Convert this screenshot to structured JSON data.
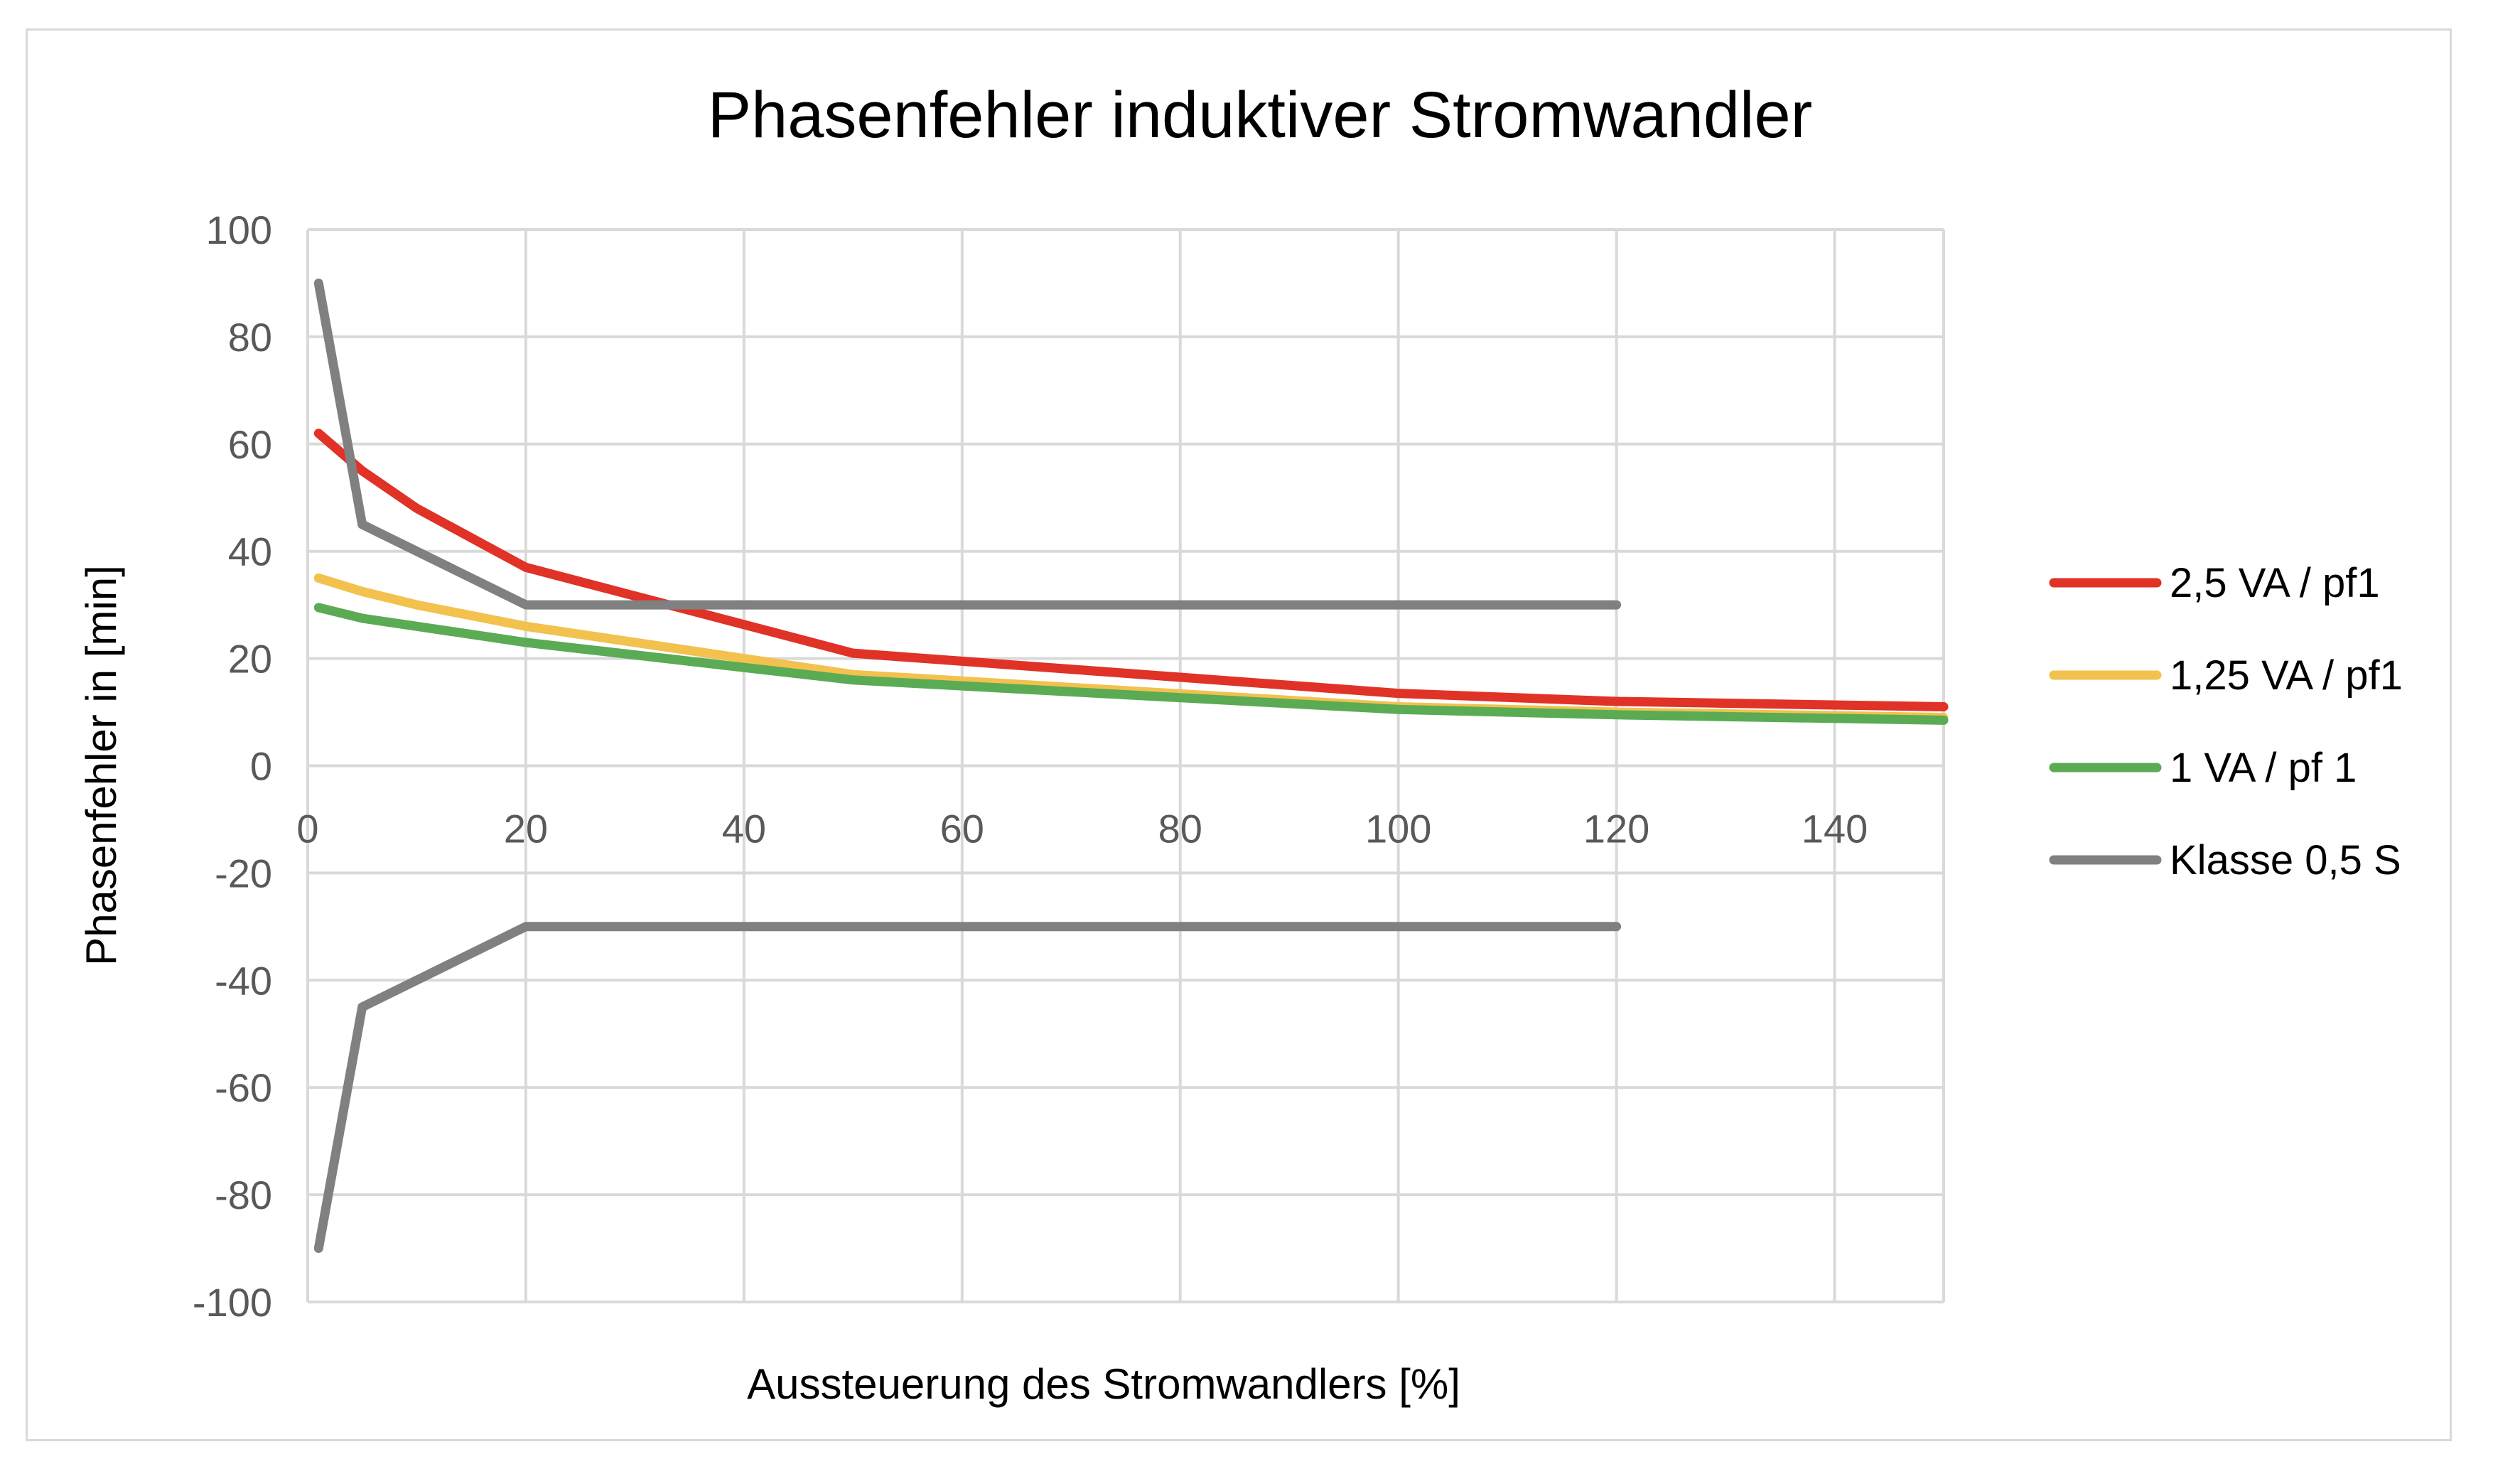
{
  "chart_data": {
    "type": "line",
    "title": "Phasenfehler induktiver Stromwandler",
    "xlabel": "Aussteuerung des Stromwandlers [%]",
    "ylabel": "Phasenfehler in [min]",
    "xlim": [
      0,
      150
    ],
    "ylim": [
      -100,
      100
    ],
    "x_ticks": [
      0,
      20,
      40,
      60,
      80,
      100,
      120,
      140
    ],
    "y_ticks": [
      100,
      80,
      60,
      40,
      20,
      0,
      -20,
      -40,
      -60,
      -80,
      -100
    ],
    "grid": true,
    "legend_position": "right",
    "series": [
      {
        "name": "2,5 VA / pf1",
        "color": "#e03226",
        "points": [
          [
            1,
            62
          ],
          [
            5,
            55
          ],
          [
            10,
            48
          ],
          [
            20,
            37
          ],
          [
            50,
            21
          ],
          [
            100,
            13.5
          ],
          [
            120,
            12
          ],
          [
            150,
            11
          ]
        ]
      },
      {
        "name": "1,25 VA / pf1",
        "color": "#f2c14e",
        "points": [
          [
            1,
            35
          ],
          [
            5,
            32.5
          ],
          [
            10,
            30
          ],
          [
            20,
            26
          ],
          [
            50,
            17
          ],
          [
            100,
            11
          ],
          [
            120,
            10
          ],
          [
            150,
            9
          ]
        ]
      },
      {
        "name": "1 VA / pf 1",
        "color": "#5aab54",
        "points": [
          [
            1,
            29.5
          ],
          [
            5,
            27.5
          ],
          [
            10,
            26
          ],
          [
            20,
            23
          ],
          [
            50,
            16
          ],
          [
            100,
            10.5
          ],
          [
            120,
            9.5
          ],
          [
            150,
            8.5
          ]
        ]
      },
      {
        "name": "Klasse 0,5 S",
        "color": "#808080",
        "segments": [
          [
            [
              1,
              90
            ],
            [
              5,
              45
            ],
            [
              20,
              30
            ],
            [
              120,
              30
            ]
          ],
          [
            [
              1,
              -90
            ],
            [
              5,
              -45
            ],
            [
              20,
              -30
            ],
            [
              120,
              -30
            ]
          ]
        ]
      }
    ]
  }
}
